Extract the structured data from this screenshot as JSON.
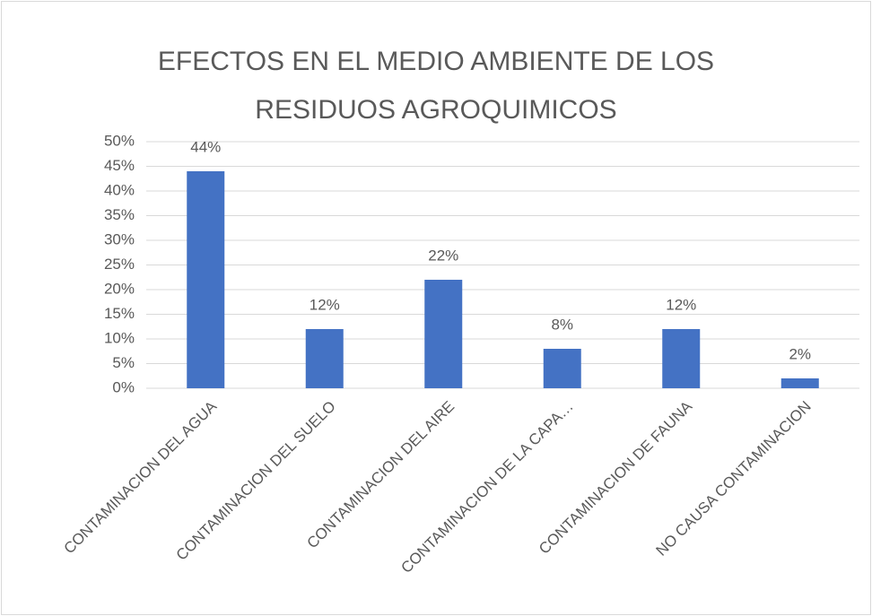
{
  "chart_data": {
    "type": "bar",
    "title": "EFECTOS EN EL MEDIO AMBIENTE DE LOS RESIDUOS AGROQUIMICOS",
    "categories": [
      "CONTAMINACION DEL AGUA",
      "CONTAMINACION DEL SUELO",
      "CONTAMINACION DEL AIRE",
      "CONTAMINACION DE LA CAPA…",
      "CONTAMINACION DE FAUNA",
      "NO CAUSA CONTAMINACION"
    ],
    "values": [
      44,
      12,
      22,
      8,
      12,
      2
    ],
    "value_labels": [
      "44%",
      "12%",
      "22%",
      "8%",
      "12%",
      "2%"
    ],
    "color": "#4472c4",
    "ylim": [
      0,
      50
    ],
    "yticks": [
      {
        "value": 0,
        "label": "0%"
      },
      {
        "value": 5,
        "label": "5%"
      },
      {
        "value": 10,
        "label": "10%"
      },
      {
        "value": 15,
        "label": "15%"
      },
      {
        "value": 20,
        "label": "20%"
      },
      {
        "value": 25,
        "label": "25%"
      },
      {
        "value": 30,
        "label": "30%"
      },
      {
        "value": 35,
        "label": "35%"
      },
      {
        "value": 40,
        "label": "40%"
      },
      {
        "value": 45,
        "label": "45%"
      },
      {
        "value": 50,
        "label": "50%"
      }
    ],
    "grid": true
  }
}
